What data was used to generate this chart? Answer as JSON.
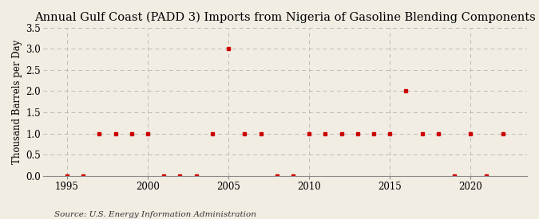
{
  "title": "Annual Gulf Coast (PADD 3) Imports from Nigeria of Gasoline Blending Components",
  "ylabel": "Thousand Barrels per Day",
  "source": "Source: U.S. Energy Information Administration",
  "background_color": "#f2ede3",
  "plot_bg_color": "#f2ede3",
  "years": [
    1995,
    1996,
    1997,
    1998,
    1999,
    2000,
    2001,
    2002,
    2003,
    2004,
    2005,
    2006,
    2007,
    2008,
    2009,
    2010,
    2011,
    2012,
    2013,
    2014,
    2015,
    2016,
    2017,
    2018,
    2019,
    2020,
    2021,
    2022
  ],
  "values": [
    0,
    0,
    1,
    1,
    1,
    1,
    0,
    0,
    0,
    1,
    3,
    1,
    1,
    0,
    0,
    1,
    1,
    1,
    1,
    1,
    1,
    2,
    1,
    1,
    0,
    1,
    0,
    1
  ],
  "ylim": [
    0,
    3.5
  ],
  "yticks": [
    0.0,
    0.5,
    1.0,
    1.5,
    2.0,
    2.5,
    3.0,
    3.5
  ],
  "xlim": [
    1993.5,
    2023.5
  ],
  "xticks": [
    1995,
    2000,
    2005,
    2010,
    2015,
    2020
  ],
  "marker_color": "#cc0000",
  "grid_color": "#bbbbbb",
  "title_fontsize": 10.5,
  "label_fontsize": 8.5,
  "tick_fontsize": 8.5,
  "source_fontsize": 7.5
}
